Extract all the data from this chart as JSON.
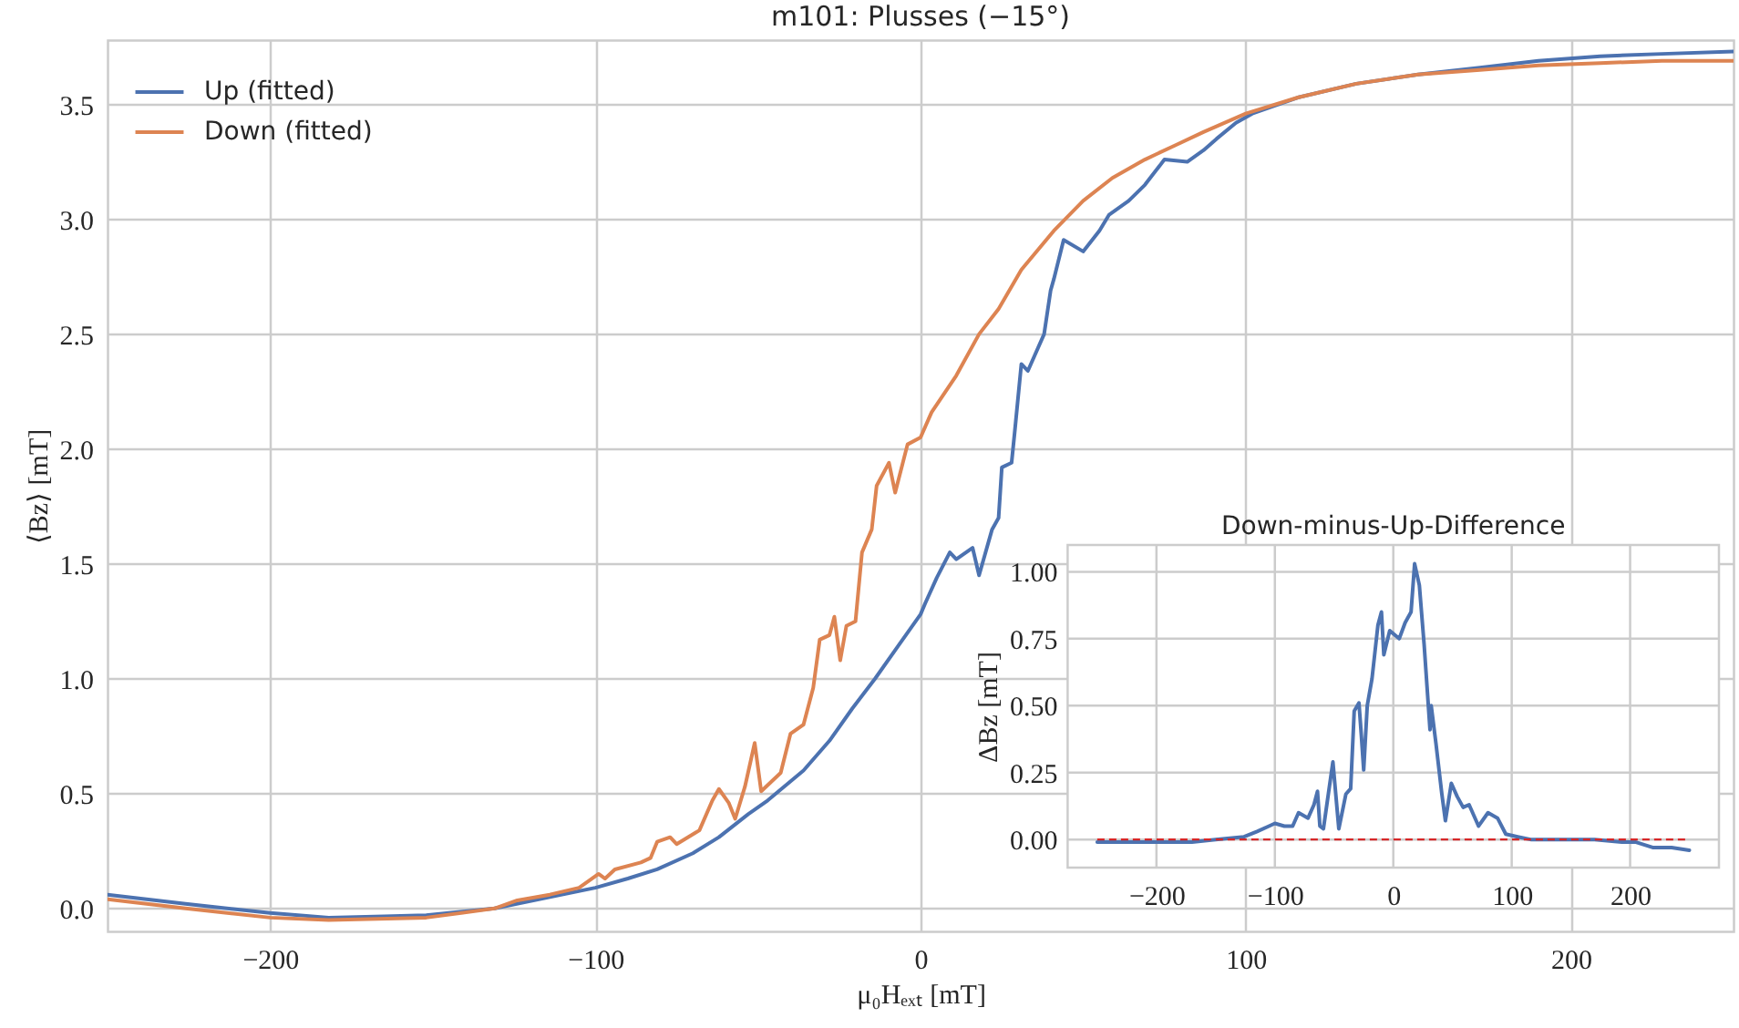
{
  "chart_data": [
    {
      "type": "line",
      "title": "m101: Plusses (−15°)",
      "xlabel": "μ₀Hₑₓₜ [mT]",
      "ylabel": "⟨Bz⟩ [mT]",
      "xlim": [
        -250,
        250
      ],
      "ylim": [
        -0.1,
        3.78
      ],
      "xticks": [
        -200,
        -100,
        0,
        100,
        200
      ],
      "yticks": [
        {
          "value": 0,
          "label": "0.0"
        },
        0.5,
        {
          "value": 1,
          "label": "1.0"
        },
        1.5,
        {
          "value": 2,
          "label": "2.0"
        },
        2.5,
        {
          "value": 3,
          "label": "3.0"
        },
        3.5
      ],
      "grid": true,
      "legend": "top left",
      "series": [
        {
          "name": "Up (fitted)",
          "color": "#4c72b0",
          "x": [
            -250,
            -226,
            -200,
            -182,
            -165,
            -152,
            -131,
            -114,
            -100,
            -90,
            -81,
            -70,
            -62,
            -53,
            -47,
            -36,
            -28,
            -21,
            -14,
            -7,
            0,
            1.5,
            5,
            9,
            11,
            16,
            18,
            22,
            24,
            25,
            28,
            29,
            31,
            33,
            38,
            40,
            41,
            44,
            50,
            55,
            58,
            64,
            69,
            75,
            82,
            87,
            91,
            97,
            102,
            116,
            134,
            153,
            172,
            190,
            209,
            228,
            250
          ],
          "values": [
            0.06,
            0.02,
            -0.02,
            -0.04,
            -0.035,
            -0.03,
            0.0,
            0.05,
            0.09,
            0.13,
            0.17,
            0.24,
            0.31,
            0.41,
            0.47,
            0.6,
            0.73,
            0.87,
            1.0,
            1.14,
            1.28,
            1.33,
            1.44,
            1.55,
            1.52,
            1.57,
            1.45,
            1.65,
            1.7,
            1.92,
            1.94,
            2.08,
            2.37,
            2.34,
            2.5,
            2.69,
            2.74,
            2.91,
            2.86,
            2.95,
            3.02,
            3.08,
            3.15,
            3.26,
            3.25,
            3.3,
            3.35,
            3.42,
            3.46,
            3.53,
            3.59,
            3.63,
            3.66,
            3.69,
            3.71,
            3.72,
            3.73
          ]
        },
        {
          "name": "Down (fitted)",
          "color": "#dd8452",
          "x": [
            -250,
            -226,
            -200,
            -182,
            -152,
            -131,
            -124,
            -114,
            -105,
            -99,
            -97,
            -94,
            -86,
            -83,
            -81,
            -77,
            -75,
            -68,
            -64,
            -62,
            -59,
            -57,
            -54,
            -51,
            -49,
            -43,
            -40,
            -36,
            -33,
            -31,
            -28,
            -26.5,
            -24.7,
            -22.8,
            -20,
            -18,
            -15,
            -13.5,
            -9.7,
            -7.8,
            -4,
            0,
            3.4,
            11,
            18,
            24,
            31,
            41,
            50,
            59,
            69,
            78,
            87,
            100,
            116,
            134,
            153,
            172,
            190,
            209,
            228,
            250
          ],
          "values": [
            0.04,
            0.0,
            -0.04,
            -0.05,
            -0.04,
            0.0,
            0.035,
            0.06,
            0.09,
            0.15,
            0.13,
            0.17,
            0.2,
            0.22,
            0.29,
            0.31,
            0.28,
            0.34,
            0.47,
            0.52,
            0.46,
            0.39,
            0.53,
            0.72,
            0.51,
            0.59,
            0.76,
            0.8,
            0.96,
            1.17,
            1.19,
            1.27,
            1.08,
            1.23,
            1.25,
            1.55,
            1.65,
            1.84,
            1.94,
            1.81,
            2.02,
            2.05,
            2.16,
            2.32,
            2.5,
            2.61,
            2.78,
            2.95,
            3.08,
            3.18,
            3.26,
            3.32,
            3.38,
            3.46,
            3.53,
            3.59,
            3.63,
            3.65,
            3.67,
            3.68,
            3.69,
            3.69
          ]
        }
      ]
    },
    {
      "type": "line",
      "title": "Down-minus-Up-Difference",
      "ylabel": "ΔBz [mT]",
      "xlim": [
        -275,
        275
      ],
      "ylim": [
        -0.105,
        1.1
      ],
      "xticks": [
        -200,
        -100,
        0,
        100,
        200
      ],
      "yticks": [
        {
          "value": 0,
          "label": "0.00"
        },
        0.25,
        {
          "value": 0.5,
          "label": "0.50"
        },
        0.75,
        {
          "value": 1,
          "label": "1.00"
        }
      ],
      "grid": true,
      "series": [
        {
          "color": "#4c72b0",
          "x": [
            -250,
            -230,
            -210,
            -193,
            -170,
            -150,
            -126,
            -115,
            -105,
            -100,
            -92,
            -85,
            -80,
            -72,
            -67,
            -64,
            -62,
            -59,
            -51,
            -46,
            -40,
            -36,
            -33,
            -29,
            -27,
            -25,
            -22,
            -18,
            -13,
            -10,
            -8,
            -3,
            5,
            10,
            15,
            18,
            22,
            26,
            31,
            32,
            36,
            41,
            44,
            49,
            54,
            59,
            64,
            72,
            80,
            88,
            95,
            105,
            116,
            130,
            147,
            170,
            193,
            205,
            219,
            235,
            250
          ],
          "values": [
            -0.01,
            -0.01,
            -0.01,
            -0.01,
            -0.01,
            0.0,
            0.01,
            0.03,
            0.05,
            0.06,
            0.05,
            0.05,
            0.1,
            0.08,
            0.13,
            0.18,
            0.05,
            0.04,
            0.29,
            0.04,
            0.17,
            0.19,
            0.48,
            0.51,
            0.39,
            0.26,
            0.5,
            0.6,
            0.8,
            0.85,
            0.69,
            0.78,
            0.75,
            0.81,
            0.85,
            1.03,
            0.95,
            0.73,
            0.41,
            0.5,
            0.36,
            0.17,
            0.07,
            0.21,
            0.16,
            0.12,
            0.13,
            0.05,
            0.1,
            0.08,
            0.02,
            0.01,
            0.0,
            0.0,
            0.0,
            0.0,
            -0.01,
            -0.01,
            -0.03,
            -0.03,
            -0.04
          ]
        },
        {
          "color": "#d62728",
          "line_style": "dashed",
          "x": [
            -250,
            250
          ],
          "values": [
            0,
            0
          ]
        }
      ]
    }
  ]
}
